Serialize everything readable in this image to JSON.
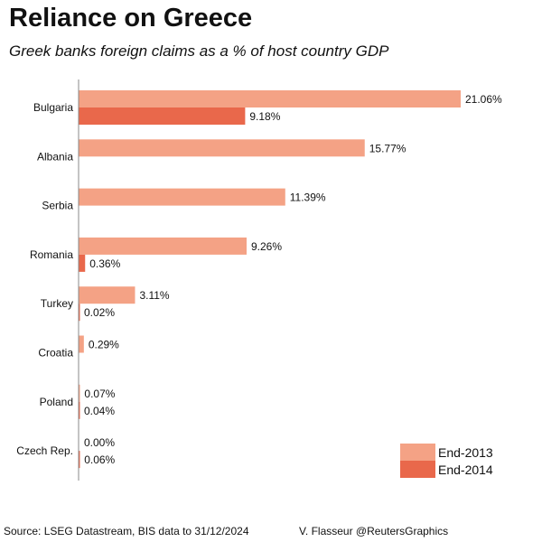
{
  "title": "Reliance on Greece",
  "subtitle": "Greek banks foreign claims as a % of host country GDP",
  "footer": {
    "source": "Source: LSEG Datastream, BIS data to 31/12/2024",
    "credit": "V. Flasseur @ReutersGraphics"
  },
  "chart_data": {
    "type": "bar",
    "orientation": "horizontal",
    "categories": [
      "Bulgaria",
      "Albania",
      "Serbia",
      "Romania",
      "Turkey",
      "Croatia",
      "Poland",
      "Czech Rep."
    ],
    "series": [
      {
        "name": "End-2013",
        "color": "#f4a285",
        "values": [
          21.06,
          15.77,
          11.39,
          9.26,
          3.11,
          0.29,
          0.07,
          0.0
        ],
        "labels": [
          "21.06%",
          "15.77%",
          "11.39%",
          "9.26%",
          "3.11%",
          "0.29%",
          "0.07%",
          "0.00%"
        ]
      },
      {
        "name": "End-2014",
        "color": "#e9684b",
        "values": [
          9.18,
          null,
          null,
          0.36,
          0.02,
          null,
          0.04,
          0.06
        ],
        "labels": [
          "9.18%",
          null,
          null,
          "0.36%",
          "0.02%",
          null,
          "0.04%",
          "0.06%"
        ]
      }
    ],
    "xlim": [
      0,
      21.06
    ],
    "grid": false,
    "legend_position": "bottom-right"
  }
}
